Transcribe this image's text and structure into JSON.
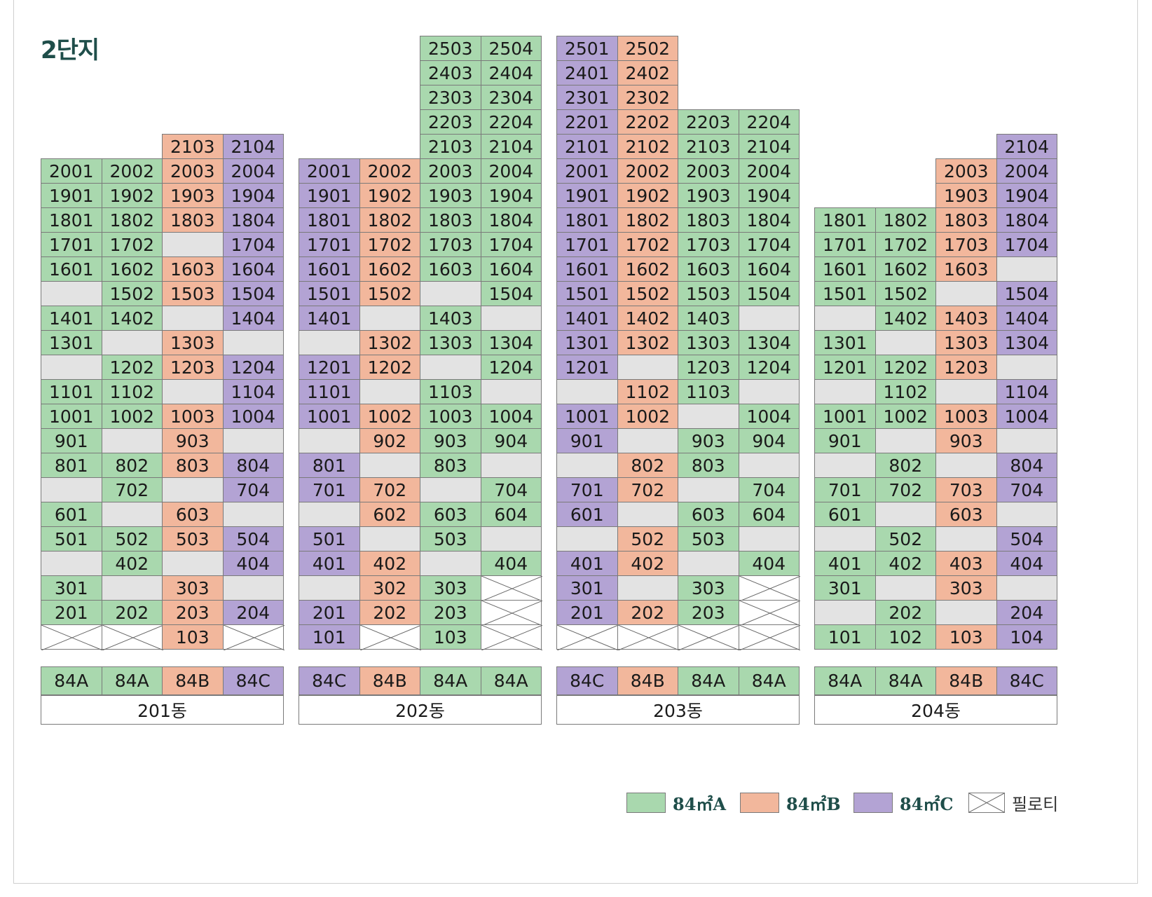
{
  "title": "2단지",
  "colors": {
    "84A": "#a9d8ae",
    "84B": "#f2b79c",
    "84C": "#b3a3d4",
    "empty": "#e3e3e3",
    "pilotis": "#ffffff"
  },
  "buildings": [
    {
      "name": "201동",
      "types": [
        "84A",
        "84A",
        "84B",
        "84C"
      ],
      "columns": [
        [
          "2001",
          "1901",
          "1801",
          "1701",
          "1601",
          "",
          "1401",
          "1301",
          "",
          "1101",
          "1001",
          "901",
          "801",
          "",
          "601",
          "501",
          "",
          "301",
          "201",
          "X"
        ],
        [
          "2002",
          "1902",
          "1802",
          "1702",
          "1602",
          "1502",
          "1402",
          "",
          "1202",
          "1102",
          "1002",
          "",
          "802",
          "702",
          "",
          "502",
          "402",
          "",
          "202",
          "X"
        ],
        [
          "2103",
          "2003",
          "1903",
          "1803",
          "",
          "1603",
          "1503",
          "",
          "1303",
          "1203",
          "",
          "1003",
          "903",
          "803",
          "",
          "603",
          "503",
          "",
          "303",
          "203",
          "103"
        ],
        [
          "2104",
          "2004",
          "1904",
          "1804",
          "1704",
          "1604",
          "1504",
          "1404",
          "",
          "1204",
          "1104",
          "1004",
          "",
          "804",
          "704",
          "",
          "504",
          "404",
          "",
          "204",
          "X"
        ]
      ]
    },
    {
      "name": "202동",
      "types": [
        "84C",
        "84B",
        "84A",
        "84A"
      ],
      "columns": [
        [
          "2001",
          "1901",
          "1801",
          "1701",
          "1601",
          "1501",
          "1401",
          "",
          "1201",
          "1101",
          "1001",
          "",
          "801",
          "701",
          "",
          "501",
          "401",
          "",
          "201",
          "101"
        ],
        [
          "2002",
          "1902",
          "1802",
          "1702",
          "1602",
          "1502",
          "",
          "1302",
          "1202",
          "",
          "1002",
          "902",
          "",
          "702",
          "602",
          "",
          "402",
          "302",
          "202",
          "X"
        ],
        [
          "2503",
          "2403",
          "2303",
          "2203",
          "2103",
          "2003",
          "1903",
          "1803",
          "1703",
          "1603",
          "",
          "1403",
          "1303",
          "",
          "1103",
          "1003",
          "903",
          "803",
          "",
          "603",
          "503",
          "",
          "303",
          "203",
          "103"
        ],
        [
          "2504",
          "2404",
          "2304",
          "2204",
          "2104",
          "2004",
          "1904",
          "1804",
          "1704",
          "1604",
          "1504",
          "",
          "1304",
          "1204",
          "",
          "1004",
          "904",
          "",
          "704",
          "604",
          "",
          "404",
          "X",
          "X",
          "X"
        ]
      ]
    },
    {
      "name": "203동",
      "types": [
        "84C",
        "84B",
        "84A",
        "84A"
      ],
      "columns": [
        [
          "2501",
          "2401",
          "2301",
          "2201",
          "2101",
          "2001",
          "1901",
          "1801",
          "1701",
          "1601",
          "1501",
          "1401",
          "1301",
          "1201",
          "",
          "1001",
          "901",
          "",
          "701",
          "601",
          "",
          "401",
          "301",
          "201",
          "X"
        ],
        [
          "2502",
          "2402",
          "2302",
          "2202",
          "2102",
          "2002",
          "1902",
          "1802",
          "1702",
          "1602",
          "1502",
          "1402",
          "1302",
          "",
          "1102",
          "1002",
          "",
          "802",
          "702",
          "",
          "502",
          "402",
          "",
          "202",
          "X"
        ],
        [
          "2203",
          "2103",
          "2003",
          "1903",
          "1803",
          "1703",
          "1603",
          "1503",
          "1403",
          "1303",
          "1203",
          "1103",
          "",
          "903",
          "803",
          "",
          "603",
          "503",
          "",
          "303",
          "203",
          "X"
        ],
        [
          "2204",
          "2104",
          "2004",
          "1904",
          "1804",
          "1704",
          "1604",
          "1504",
          "",
          "1304",
          "1204",
          "",
          "1004",
          "904",
          "",
          "704",
          "604",
          "",
          "404",
          "X",
          "X",
          "X"
        ]
      ]
    },
    {
      "name": "204동",
      "types": [
        "84A",
        "84A",
        "84B",
        "84C"
      ],
      "columns": [
        [
          "1801",
          "1701",
          "1601",
          "1501",
          "",
          "1301",
          "1201",
          "",
          "1001",
          "901",
          "",
          "701",
          "601",
          "",
          "401",
          "301",
          "",
          "101"
        ],
        [
          "1802",
          "1702",
          "1602",
          "1502",
          "1402",
          "",
          "1202",
          "1102",
          "1002",
          "",
          "802",
          "702",
          "",
          "502",
          "402",
          "",
          "202",
          "102"
        ],
        [
          "2003",
          "1903",
          "1803",
          "1703",
          "1603",
          "",
          "1403",
          "1303",
          "1203",
          "",
          "1003",
          "903",
          "",
          "703",
          "603",
          "",
          "403",
          "303",
          "",
          "103"
        ],
        [
          "2104",
          "2004",
          "1904",
          "1804",
          "1704",
          "",
          "1504",
          "1404",
          "1304",
          "",
          "1104",
          "1004",
          "",
          "804",
          "704",
          "",
          "504",
          "404",
          "",
          "204",
          "104"
        ]
      ]
    }
  ],
  "legend": [
    {
      "key": "84A",
      "label": "84㎡A"
    },
    {
      "key": "84B",
      "label": "84㎡B"
    },
    {
      "key": "84C",
      "label": "84㎡C"
    },
    {
      "key": "pilotis",
      "label": "필로티"
    }
  ]
}
